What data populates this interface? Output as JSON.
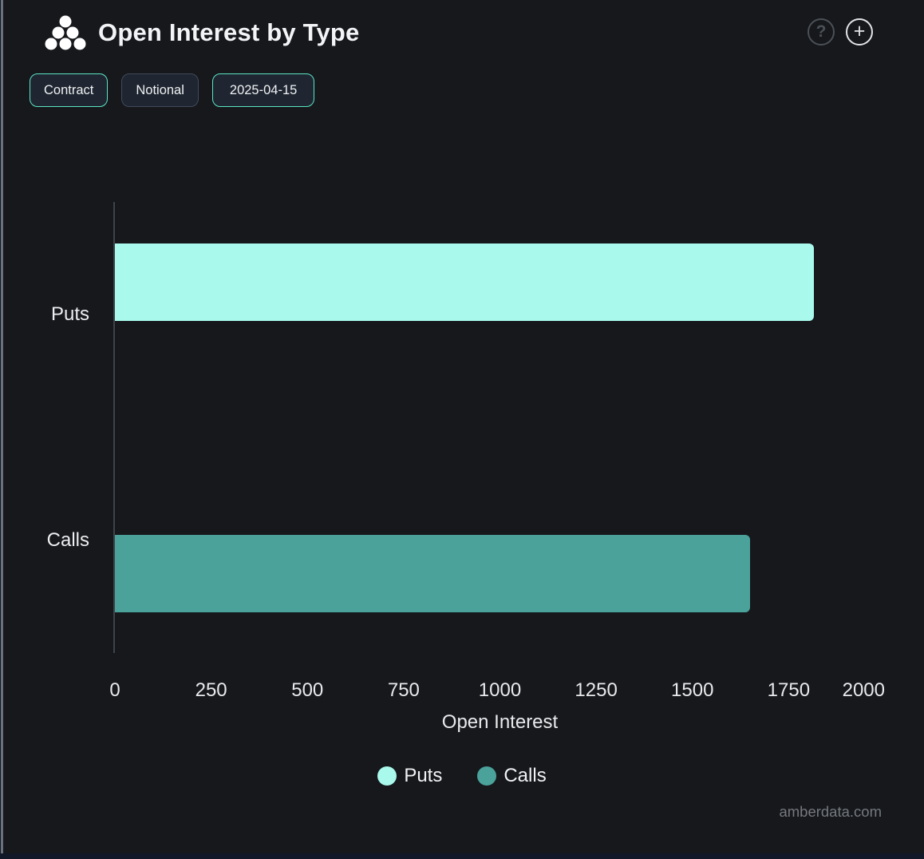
{
  "header": {
    "title": "Open Interest by Type",
    "logo_icon": "amberdata-dots-logo",
    "help_icon": "?",
    "add_icon": "+"
  },
  "toolbar": {
    "buttons": [
      {
        "label": "Contract",
        "active": true
      },
      {
        "label": "Notional",
        "active": false
      },
      {
        "label": "2025-04-15",
        "active": true
      }
    ]
  },
  "chart_data": {
    "type": "bar",
    "orientation": "horizontal",
    "title": "Open Interest by Type",
    "categories": [
      "Puts",
      "Calls"
    ],
    "series": [
      {
        "name": "Puts",
        "color": "#a9f9ec",
        "values": [
          1815,
          0
        ]
      },
      {
        "name": "Calls",
        "color": "#4aa29b",
        "values": [
          0,
          1650
        ]
      }
    ],
    "xlabel": "Open Interest",
    "xlim": [
      0,
      2000
    ],
    "xticks": [
      0,
      250,
      500,
      750,
      1000,
      1250,
      1500,
      1750,
      2000
    ],
    "grid": false,
    "legend_position": "bottom",
    "legend": [
      "Puts",
      "Calls"
    ]
  },
  "watermark": "amberdata.com",
  "colors": {
    "background": "#16181c",
    "accent_teal": "#5be5c4",
    "puts_bar": "#a9f9ec",
    "calls_bar": "#4aa29b",
    "button_bg": "#1f2631"
  }
}
